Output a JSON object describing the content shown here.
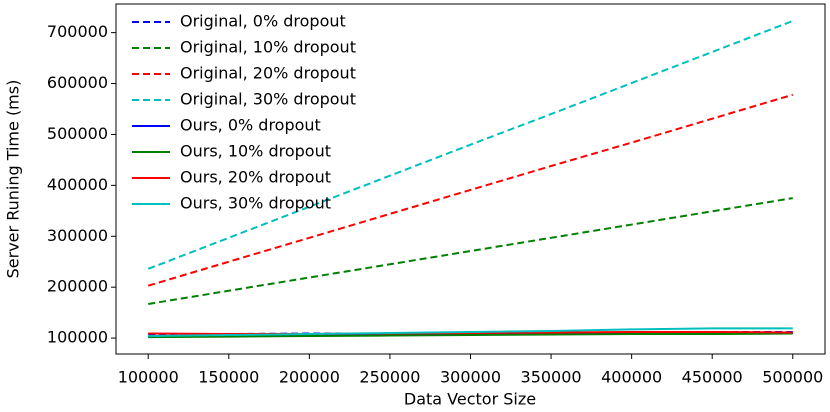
{
  "chart_data": {
    "type": "line",
    "x_label": "Data Vector Size",
    "y_label": "Server Runing Time (ms)",
    "x": [
      100000,
      150000,
      200000,
      250000,
      300000,
      350000,
      400000,
      450000,
      500000
    ],
    "xlim": [
      80000,
      520000
    ],
    "xticks": [
      100000,
      150000,
      200000,
      250000,
      300000,
      350000,
      400000,
      450000,
      500000
    ],
    "ylim": [
      68750,
      756250
    ],
    "yticks": [
      100000,
      200000,
      300000,
      400000,
      500000,
      600000,
      700000
    ],
    "legend": "upper left",
    "series": [
      {
        "name": "Original, 0% dropout",
        "color": "#0000ff",
        "linestyle": "dashed",
        "values": [
          108000,
          108000,
          109000,
          109000,
          110000,
          110000,
          111000,
          112000,
          112000
        ]
      },
      {
        "name": "Original, 10% dropout",
        "color": "#008000",
        "linestyle": "dashed",
        "values": [
          167000,
          193000,
          219000,
          245000,
          271000,
          297000,
          323000,
          349000,
          375000
        ]
      },
      {
        "name": "Original, 20% dropout",
        "color": "#ff0000",
        "linestyle": "dashed",
        "values": [
          203000,
          250000,
          297000,
          344000,
          391000,
          438000,
          484000,
          531000,
          578000
        ]
      },
      {
        "name": "Original, 30% dropout",
        "color": "#00bfbf",
        "linestyle": "dashed",
        "values": [
          236000,
          297000,
          358000,
          419000,
          480000,
          540000,
          601000,
          662000,
          723000
        ]
      },
      {
        "name": "Ours, 0% dropout",
        "color": "#0000ff",
        "linestyle": "solid",
        "values": [
          103000,
          104000,
          105000,
          106000,
          107000,
          108000,
          109000,
          110000,
          110000
        ]
      },
      {
        "name": "Ours, 10% dropout",
        "color": "#008000",
        "linestyle": "solid",
        "values": [
          102000,
          103000,
          104000,
          105000,
          106000,
          107000,
          108000,
          108000,
          109000
        ]
      },
      {
        "name": "Ours, 20% dropout",
        "color": "#ff0000",
        "linestyle": "solid",
        "values": [
          109000,
          108000,
          108000,
          109000,
          110000,
          111000,
          112000,
          112000,
          111000
        ]
      },
      {
        "name": "Ours, 30% dropout",
        "color": "#00bfbf",
        "linestyle": "solid",
        "values": [
          104000,
          106000,
          108000,
          110000,
          112000,
          114000,
          117000,
          119000,
          119000
        ]
      }
    ]
  }
}
